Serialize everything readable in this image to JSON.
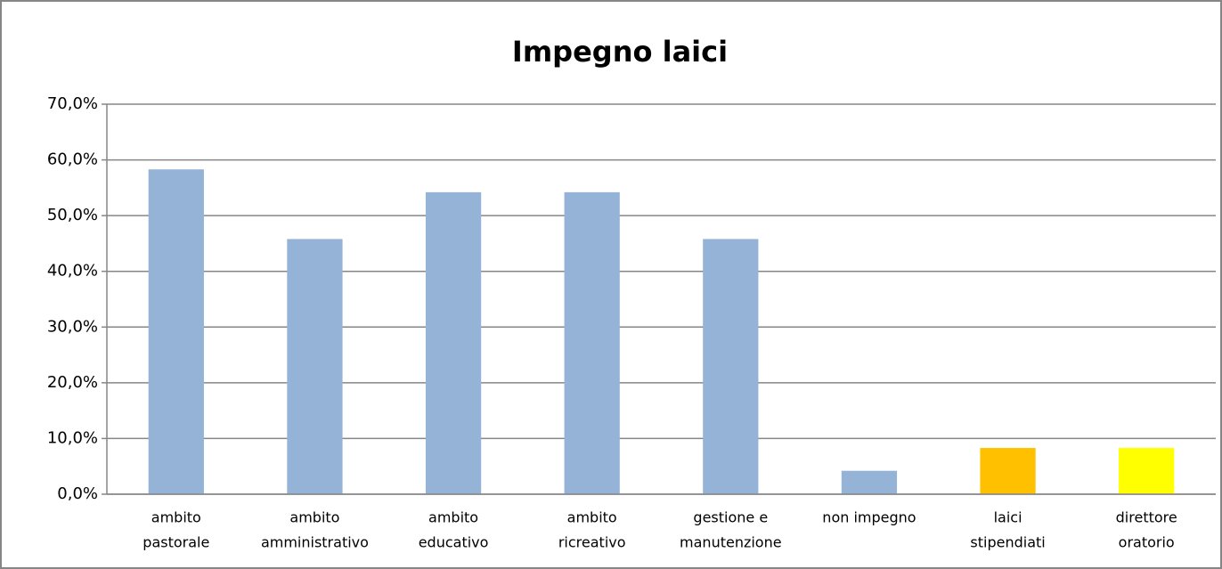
{
  "chart_data": {
    "type": "bar",
    "title": "Impegno laici",
    "categories": [
      [
        "ambito",
        "pastorale"
      ],
      [
        "ambito",
        "amministrativo"
      ],
      [
        "ambito",
        "educativo"
      ],
      [
        "ambito",
        "ricreativo"
      ],
      [
        "gestione e",
        "manutenzione"
      ],
      [
        "non impegno"
      ],
      [
        "laici",
        "stipendiati"
      ],
      [
        "direttore",
        "oratorio"
      ]
    ],
    "values": [
      58.3,
      45.8,
      54.2,
      54.2,
      45.8,
      4.2,
      8.3,
      8.3
    ],
    "colors": [
      "#95b3d7",
      "#95b3d7",
      "#95b3d7",
      "#95b3d7",
      "#95b3d7",
      "#95b3d7",
      "#ffc000",
      "#ffff00"
    ],
    "ylim": [
      0,
      70
    ],
    "yticks": [
      {
        "value": 0,
        "label": "0,0%"
      },
      {
        "value": 10,
        "label": "10,0%"
      },
      {
        "value": 20,
        "label": "20,0%"
      },
      {
        "value": 30,
        "label": "30,0%"
      },
      {
        "value": 40,
        "label": "40,0%"
      },
      {
        "value": 50,
        "label": "50,0%"
      },
      {
        "value": 60,
        "label": "60,0%"
      },
      {
        "value": 70,
        "label": "70,0%"
      }
    ],
    "grid": true
  }
}
